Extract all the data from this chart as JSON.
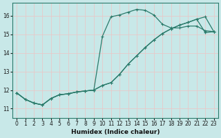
{
  "xlabel": "Humidex (Indice chaleur)",
  "background_color": "#c8e8e8",
  "grid_color": "#e8c8c8",
  "line_color": "#2a7a6a",
  "xlim": [
    -0.5,
    23.5
  ],
  "ylim": [
    10.5,
    16.7
  ],
  "xticks": [
    0,
    1,
    2,
    3,
    4,
    5,
    6,
    7,
    8,
    9,
    10,
    11,
    12,
    13,
    14,
    15,
    16,
    17,
    18,
    19,
    20,
    21,
    22,
    23
  ],
  "yticks": [
    11,
    12,
    13,
    14,
    15,
    16
  ],
  "series1_x": [
    0,
    1,
    2,
    3,
    4,
    5,
    6,
    7,
    8,
    9,
    10,
    11,
    12,
    13,
    14,
    15,
    16,
    17,
    18,
    19,
    20,
    21,
    22,
    23
  ],
  "series1_y": [
    11.85,
    11.5,
    11.3,
    11.2,
    11.55,
    11.75,
    11.8,
    11.9,
    11.95,
    12.0,
    14.9,
    15.95,
    16.05,
    16.2,
    16.35,
    16.3,
    16.05,
    15.55,
    15.35,
    15.35,
    15.45,
    15.45,
    15.2,
    15.15
  ],
  "series2_x": [
    0,
    1,
    2,
    3,
    4,
    5,
    6,
    7,
    8,
    9,
    10,
    11,
    12,
    13,
    14,
    15,
    16,
    17,
    18,
    19,
    20,
    21,
    22,
    23
  ],
  "series2_y": [
    11.85,
    11.5,
    11.3,
    11.2,
    11.55,
    11.75,
    11.8,
    11.9,
    11.95,
    12.0,
    12.25,
    12.4,
    12.85,
    13.4,
    13.85,
    14.3,
    14.7,
    15.05,
    15.3,
    15.5,
    15.65,
    15.82,
    15.95,
    15.15
  ],
  "series3_x": [
    0,
    1,
    2,
    3,
    4,
    5,
    6,
    7,
    8,
    9,
    10,
    11,
    12,
    13,
    14,
    15,
    16,
    17,
    18,
    19,
    20,
    21,
    22,
    23
  ],
  "series3_y": [
    11.85,
    11.5,
    11.3,
    11.2,
    11.55,
    11.75,
    11.8,
    11.9,
    11.95,
    12.0,
    12.25,
    12.4,
    12.85,
    13.4,
    13.85,
    14.3,
    14.7,
    15.05,
    15.3,
    15.5,
    15.65,
    15.82,
    15.1,
    15.15
  ],
  "xlabel_fontsize": 6.5,
  "tick_fontsize": 5.5
}
